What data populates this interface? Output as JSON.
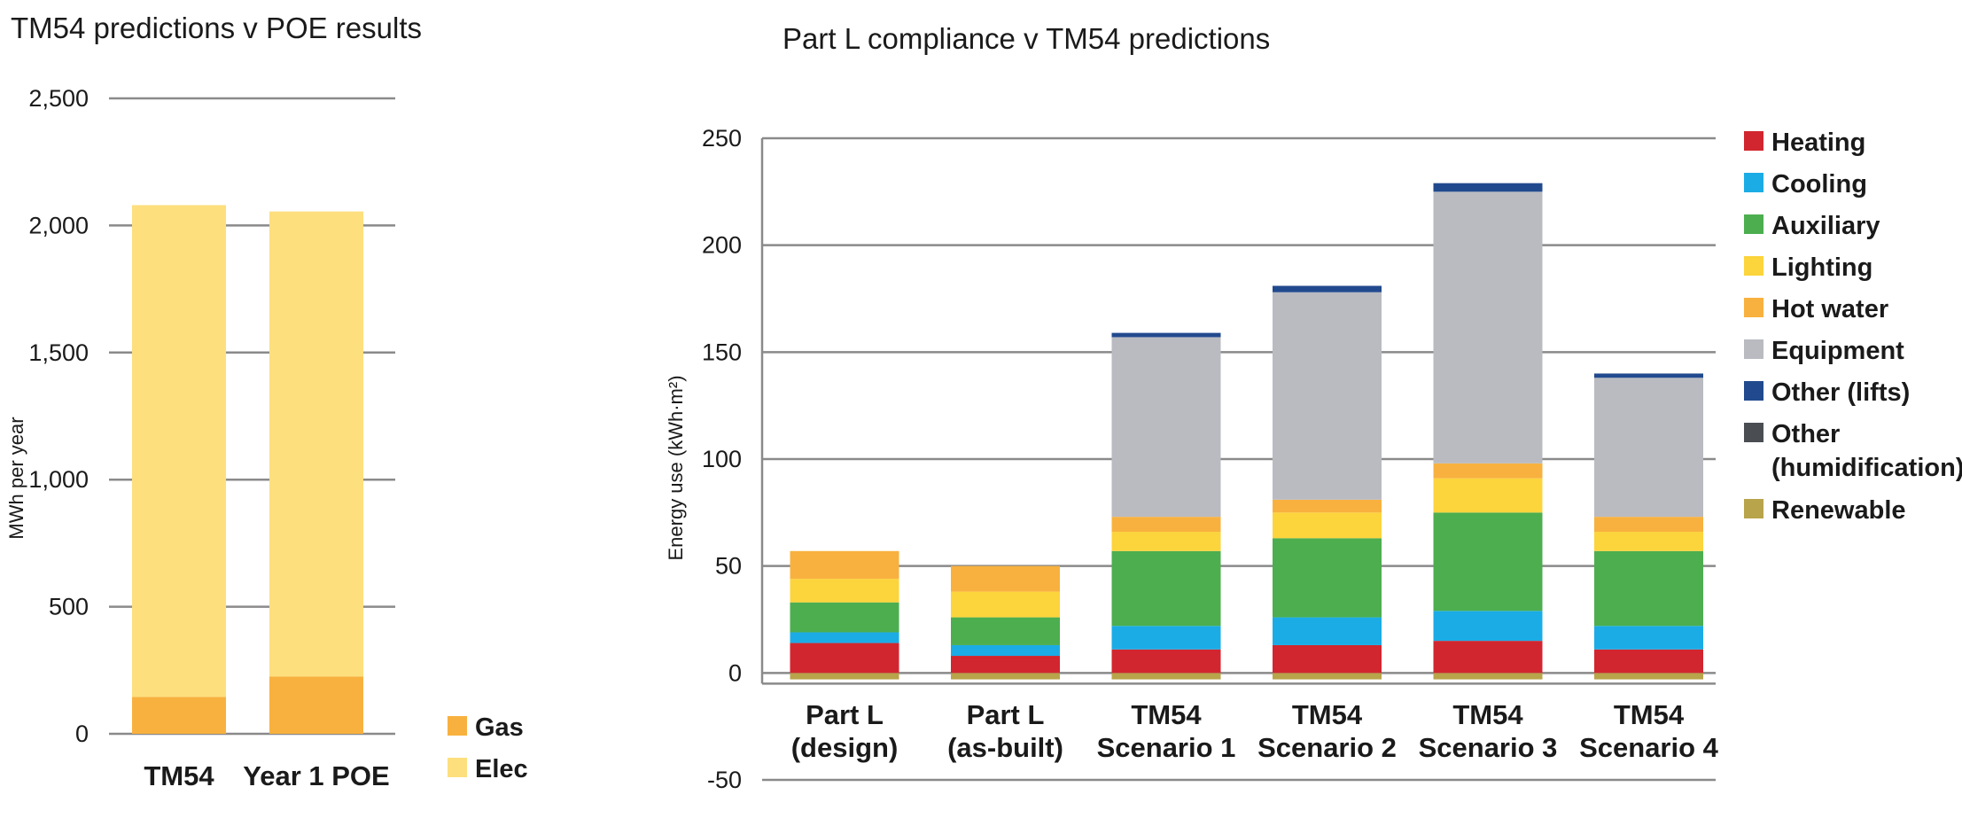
{
  "chart_data": [
    {
      "type": "bar",
      "stacked": true,
      "title": "TM54 predictions v POE results",
      "ylabel": "MWh per year",
      "xlabel": "",
      "ylim": [
        0,
        2500
      ],
      "yticks": [
        "0",
        "500",
        "1,000",
        "1,500",
        "2,000",
        "2,500"
      ],
      "ytick_values": [
        0,
        500,
        1000,
        1500,
        2000,
        2500
      ],
      "grid": true,
      "legend_position": "bottom-right",
      "categories": [
        "TM54",
        "Year 1 POE"
      ],
      "series": [
        {
          "name": "Gas",
          "color": "#F8B13F",
          "values": [
            145,
            225
          ]
        },
        {
          "name": "Elec",
          "color": "#FDDF7E",
          "values": [
            1935,
            1830
          ]
        }
      ]
    },
    {
      "type": "bar",
      "stacked": true,
      "title": "Part L compliance v TM54 predictions",
      "ylabel": "Energy use (kWh·m²)",
      "xlabel": "",
      "ylim": [
        -50,
        250
      ],
      "yticks": [
        "-50",
        "0",
        "50",
        "100",
        "150",
        "200",
        "250"
      ],
      "ytick_values": [
        -50,
        0,
        50,
        100,
        150,
        200,
        250
      ],
      "grid": true,
      "legend_position": "right",
      "categories": [
        [
          "Part L",
          "(design)"
        ],
        [
          "Part L",
          "(as-built)"
        ],
        [
          "TM54",
          "Scenario 1"
        ],
        [
          "TM54",
          "Scenario 2"
        ],
        [
          "TM54",
          "Scenario 3"
        ],
        [
          "TM54",
          "Scenario 4"
        ]
      ],
      "series": [
        {
          "name": "Renewable",
          "legend_lines": [
            "Renewable"
          ],
          "color": "#B8A44A",
          "values": [
            -3,
            -3,
            -3,
            -3,
            -3,
            -3
          ]
        },
        {
          "name": "Heating",
          "legend_lines": [
            "Heating"
          ],
          "color": "#D1262F",
          "values": [
            14,
            8,
            11,
            13,
            15,
            11
          ]
        },
        {
          "name": "Cooling",
          "legend_lines": [
            "Cooling"
          ],
          "color": "#1BACE6",
          "values": [
            5,
            5,
            11,
            13,
            14,
            11
          ]
        },
        {
          "name": "Auxiliary",
          "legend_lines": [
            "Auxiliary"
          ],
          "color": "#4CAE4F",
          "values": [
            14,
            13,
            35,
            37,
            46,
            35
          ]
        },
        {
          "name": "Lighting",
          "legend_lines": [
            "Lighting"
          ],
          "color": "#FCD43C",
          "values": [
            11,
            12,
            9,
            12,
            16,
            9
          ]
        },
        {
          "name": "Hot water",
          "legend_lines": [
            "Hot water"
          ],
          "color": "#F8B13F",
          "values": [
            13,
            12,
            7,
            6,
            7,
            7
          ]
        },
        {
          "name": "Equipment",
          "legend_lines": [
            "Equipment"
          ],
          "color": "#B9BBC1",
          "values": [
            0,
            0,
            84,
            97,
            127,
            65
          ]
        },
        {
          "name": "Other (lifts)",
          "legend_lines": [
            "Other (lifts)"
          ],
          "color": "#214A8E",
          "values": [
            0,
            0,
            2,
            3,
            4,
            2
          ]
        },
        {
          "name": "Other (humidification)",
          "legend_lines": [
            "Other",
            "(humidification)"
          ],
          "color": "#4A4D52",
          "values": [
            0,
            0,
            0,
            0,
            0,
            0
          ]
        }
      ],
      "legend_order": [
        "Heating",
        "Cooling",
        "Auxiliary",
        "Lighting",
        "Hot water",
        "Equipment",
        "Other (lifts)",
        "Other (humidification)",
        "Renewable"
      ]
    }
  ]
}
